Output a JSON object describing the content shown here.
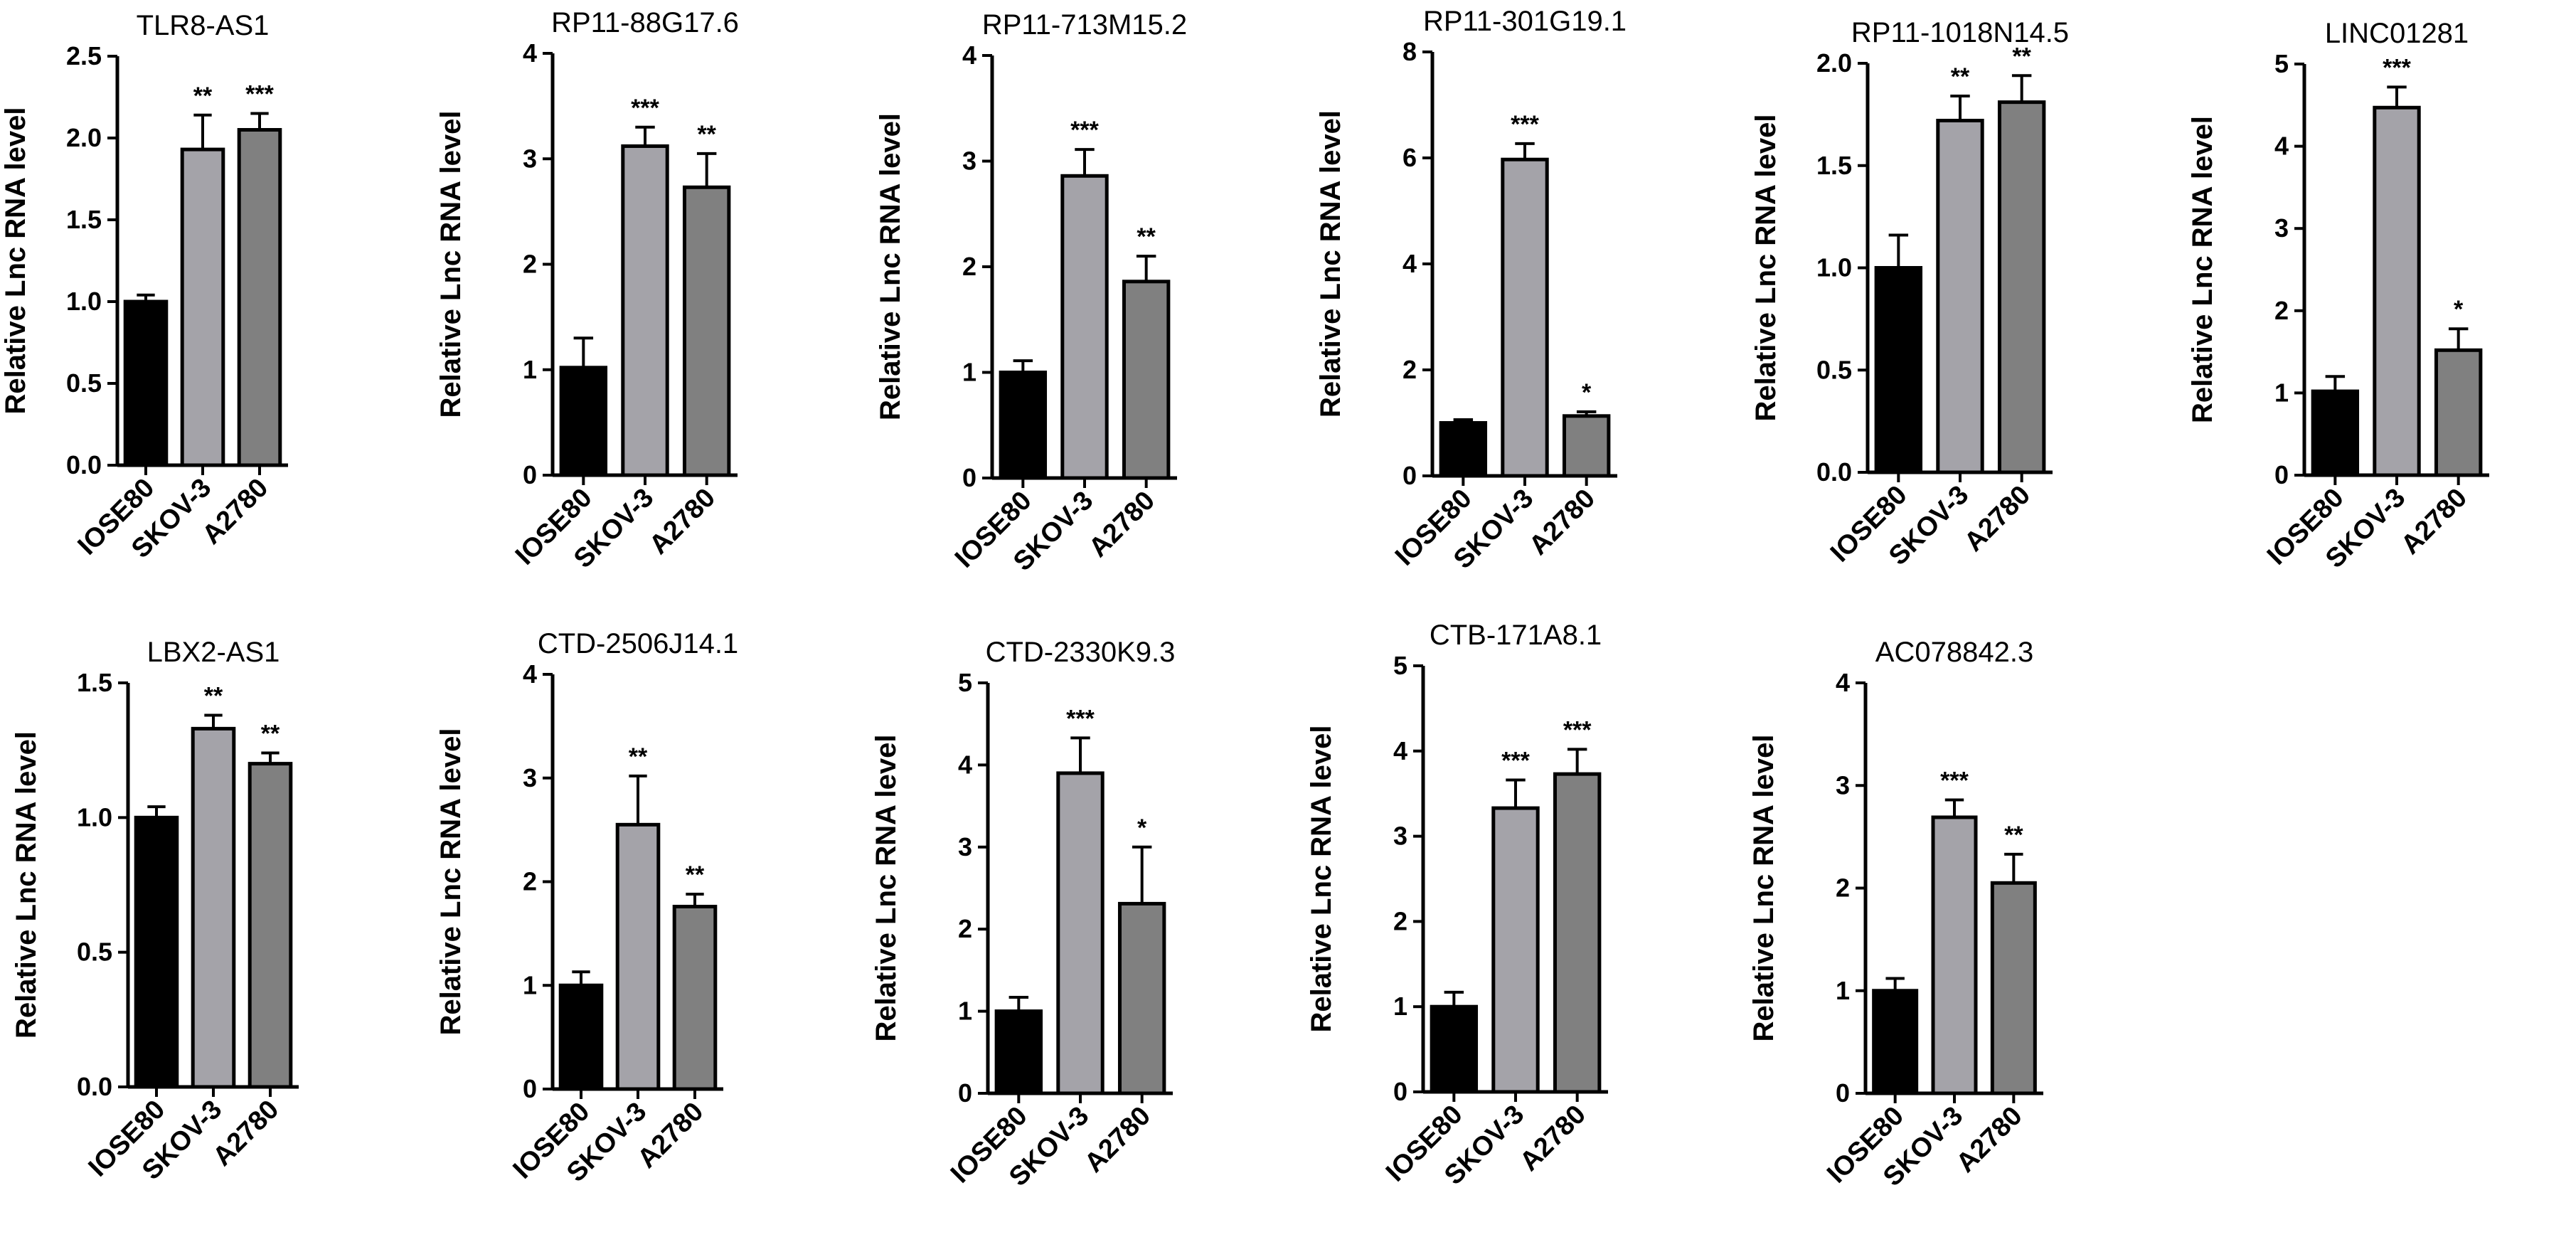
{
  "figure": {
    "ylabel": "Relative Lnc RNA level",
    "categories": [
      "IOSE80",
      "SKOV-3",
      "A2780"
    ],
    "bar_colors": [
      "#000000",
      "#a4a3a9",
      "#808080"
    ]
  },
  "chart_data": [
    {
      "type": "bar",
      "title": "TLR8-AS1",
      "ylabel": "Relative Lnc RNA level",
      "categories": [
        "IOSE80",
        "SKOV-3",
        "A2780"
      ],
      "values": [
        1.0,
        1.93,
        2.05
      ],
      "errors": [
        0.04,
        0.21,
        0.1
      ],
      "significance": [
        "",
        "**",
        "***"
      ],
      "ylim": [
        0,
        2.5
      ],
      "ticks": [
        "0.0",
        "0.5",
        "1.0",
        "1.5",
        "2.0",
        "2.5"
      ]
    },
    {
      "type": "bar",
      "title": "RP11-88G17.6",
      "ylabel": "Relative Lnc RNA level",
      "categories": [
        "IOSE80",
        "SKOV-3",
        "A2780"
      ],
      "values": [
        1.02,
        3.12,
        2.73
      ],
      "errors": [
        0.28,
        0.18,
        0.32
      ],
      "significance": [
        "",
        "***",
        "**"
      ],
      "ylim": [
        0,
        4
      ],
      "ticks": [
        "0",
        "1",
        "2",
        "3",
        "4"
      ]
    },
    {
      "type": "bar",
      "title": "RP11-713M15.2",
      "ylabel": "Relative Lnc RNA level",
      "categories": [
        "IOSE80",
        "SKOV-3",
        "A2780"
      ],
      "values": [
        1.0,
        2.86,
        1.86
      ],
      "errors": [
        0.11,
        0.25,
        0.24
      ],
      "significance": [
        "",
        "***",
        "**"
      ],
      "ylim": [
        0,
        4
      ],
      "ticks": [
        "0",
        "1",
        "2",
        "3",
        "4"
      ]
    },
    {
      "type": "bar",
      "title": "RP11-301G19.1",
      "ylabel": "Relative Lnc RNA level",
      "categories": [
        "IOSE80",
        "SKOV-3",
        "A2780"
      ],
      "values": [
        1.0,
        5.97,
        1.13
      ],
      "errors": [
        0.06,
        0.3,
        0.08
      ],
      "significance": [
        "",
        "***",
        "*"
      ],
      "ylim": [
        0,
        8
      ],
      "ticks": [
        "0",
        "2",
        "4",
        "6",
        "8"
      ]
    },
    {
      "type": "bar",
      "title": "RP11-1018N14.5",
      "ylabel": "Relative Lnc RNA level",
      "categories": [
        "IOSE80",
        "SKOV-3",
        "A2780"
      ],
      "values": [
        1.0,
        1.72,
        1.81
      ],
      "errors": [
        0.16,
        0.12,
        0.13
      ],
      "significance": [
        "",
        "**",
        "**"
      ],
      "ylim": [
        0,
        2.0
      ],
      "ticks": [
        "0.0",
        "0.5",
        "1.0",
        "1.5",
        "2.0"
      ]
    },
    {
      "type": "bar",
      "title": "LINC01281",
      "ylabel": "Relative Lnc RNA level",
      "categories": [
        "IOSE80",
        "SKOV-3",
        "A2780"
      ],
      "values": [
        1.02,
        4.47,
        1.52
      ],
      "errors": [
        0.18,
        0.25,
        0.26
      ],
      "significance": [
        "",
        "***",
        "*"
      ],
      "ylim": [
        0,
        5
      ],
      "ticks": [
        "0",
        "1",
        "2",
        "3",
        "4",
        "5"
      ]
    },
    {
      "type": "bar",
      "title": "LBX2-AS1",
      "ylabel": "Relative Lnc RNA level",
      "categories": [
        "IOSE80",
        "SKOV-3",
        "A2780"
      ],
      "values": [
        1.0,
        1.33,
        1.2
      ],
      "errors": [
        0.04,
        0.05,
        0.04
      ],
      "significance": [
        "",
        "**",
        "**"
      ],
      "ylim": [
        0,
        1.5
      ],
      "ticks": [
        "0.0",
        "0.5",
        "1.0",
        "1.5"
      ]
    },
    {
      "type": "bar",
      "title": "CTD-2506J14.1",
      "ylabel": "Relative Lnc RNA level",
      "categories": [
        "IOSE80",
        "SKOV-3",
        "A2780"
      ],
      "values": [
        1.0,
        2.55,
        1.76
      ],
      "errors": [
        0.13,
        0.47,
        0.12
      ],
      "significance": [
        "",
        "**",
        "**"
      ],
      "ylim": [
        0,
        4
      ],
      "ticks": [
        "0",
        "1",
        "2",
        "3",
        "4"
      ]
    },
    {
      "type": "bar",
      "title": "CTD-2330K9.3",
      "ylabel": "Relative Lnc RNA level",
      "categories": [
        "IOSE80",
        "SKOV-3",
        "A2780"
      ],
      "values": [
        1.0,
        3.9,
        2.31
      ],
      "errors": [
        0.17,
        0.43,
        0.69
      ],
      "significance": [
        "",
        "***",
        "*"
      ],
      "ylim": [
        0,
        5
      ],
      "ticks": [
        "0",
        "1",
        "2",
        "3",
        "4",
        "5"
      ]
    },
    {
      "type": "bar",
      "title": "CTB-171A8.1",
      "ylabel": "Relative Lnc RNA level",
      "categories": [
        "IOSE80",
        "SKOV-3",
        "A2780"
      ],
      "values": [
        1.0,
        3.33,
        3.73
      ],
      "errors": [
        0.17,
        0.33,
        0.29
      ],
      "significance": [
        "",
        "***",
        "***"
      ],
      "ylim": [
        0,
        5
      ],
      "ticks": [
        "0",
        "1",
        "2",
        "3",
        "4",
        "5"
      ]
    },
    {
      "type": "bar",
      "title": "AC078842.3",
      "ylabel": "Relative Lnc RNA level",
      "categories": [
        "IOSE80",
        "SKOV-3",
        "A2780"
      ],
      "values": [
        1.0,
        2.69,
        2.05
      ],
      "errors": [
        0.12,
        0.17,
        0.28
      ],
      "significance": [
        "",
        "***",
        "**"
      ],
      "ylim": [
        0,
        4
      ],
      "ticks": [
        "0",
        "1",
        "2",
        "3",
        "4"
      ]
    }
  ]
}
